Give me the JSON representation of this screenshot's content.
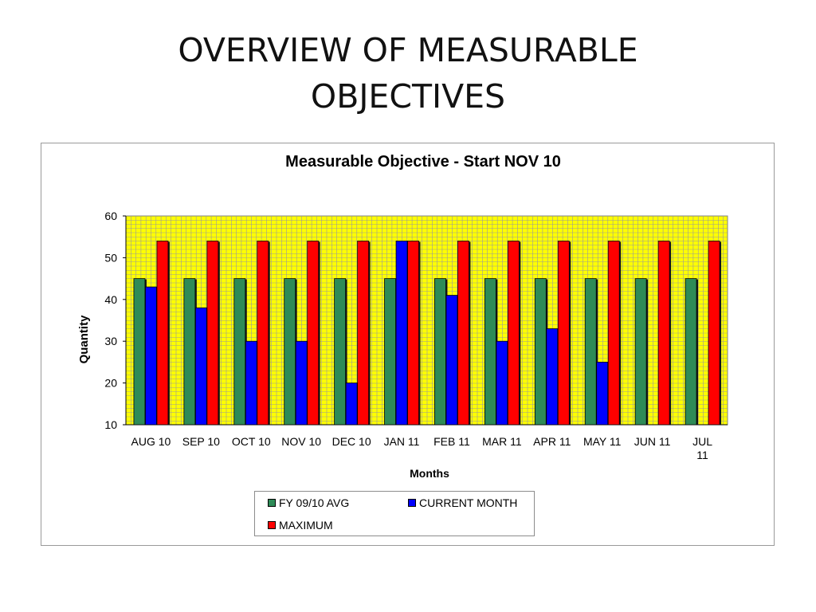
{
  "slide": {
    "title_line1": "OVERVIEW OF MEASURABLE",
    "title_line2": "OBJECTIVES"
  },
  "chart_data": {
    "type": "bar",
    "title": "Measurable Objective - Start NOV 10",
    "xlabel": "Months",
    "ylabel": "Quantity",
    "ylim": [
      10,
      60
    ],
    "yticks": [
      10,
      20,
      30,
      40,
      50,
      60
    ],
    "grid": true,
    "plot_background": "#ffff00",
    "legend_position": "bottom",
    "categories": [
      "AUG 10",
      "SEP 10",
      "OCT 10",
      "NOV 10",
      "DEC 10",
      "JAN 11",
      "FEB 11",
      "MAR 11",
      "APR 11",
      "MAY 11",
      "JUN 11",
      "JUL 11"
    ],
    "series": [
      {
        "name": "FY 09/10 AVG",
        "color": "#2e8b57",
        "values": [
          45,
          45,
          45,
          45,
          45,
          45,
          45,
          45,
          45,
          45,
          45,
          45
        ]
      },
      {
        "name": "CURRENT MONTH",
        "color": "#0000ff",
        "values": [
          43,
          38,
          30,
          30,
          20,
          54,
          41,
          30,
          33,
          25,
          null,
          null
        ]
      },
      {
        "name": "MAXIMUM",
        "color": "#ff0000",
        "values": [
          54,
          54,
          54,
          54,
          54,
          54,
          54,
          54,
          54,
          54,
          54,
          54
        ]
      }
    ]
  }
}
